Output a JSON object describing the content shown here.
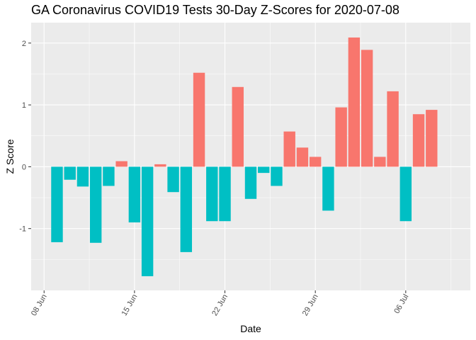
{
  "chart_data": {
    "type": "bar",
    "title": "GA Coronavirus COVID19 Tests 30-Day Z-Scores for 2020-07-08",
    "xlabel": "Date",
    "ylabel": "Z Score",
    "grid": true,
    "legend": "none",
    "x_tick_labels": [
      "08 Jun",
      "15 Jun",
      "22 Jun",
      "29 Jun",
      "06 Jul"
    ],
    "x_tick_dates": [
      "2020-06-08",
      "2020-06-15",
      "2020-06-22",
      "2020-06-29",
      "2020-07-06"
    ],
    "y_ticks": [
      -1,
      0,
      1,
      2
    ],
    "ylim": [
      -2.0,
      2.33
    ],
    "xlim": [
      "2020-06-07",
      "2020-07-11"
    ],
    "colors": {
      "positive": "#F8766D",
      "negative": "#00BFC4",
      "panel": "#EBEBEB",
      "grid": "#FFFFFF"
    },
    "dates": [
      "2020-06-09",
      "2020-06-10",
      "2020-06-11",
      "2020-06-12",
      "2020-06-13",
      "2020-06-14",
      "2020-06-15",
      "2020-06-16",
      "2020-06-17",
      "2020-06-18",
      "2020-06-19",
      "2020-06-20",
      "2020-06-21",
      "2020-06-22",
      "2020-06-23",
      "2020-06-24",
      "2020-06-25",
      "2020-06-26",
      "2020-06-27",
      "2020-06-28",
      "2020-06-29",
      "2020-06-30",
      "2020-07-01",
      "2020-07-02",
      "2020-07-03",
      "2020-07-04",
      "2020-07-05",
      "2020-07-06",
      "2020-07-07",
      "2020-07-08"
    ],
    "values": [
      -1.22,
      -0.21,
      -0.32,
      -1.23,
      -0.31,
      0.09,
      -0.9,
      -1.77,
      0.04,
      -0.41,
      -1.38,
      1.52,
      -0.88,
      -0.88,
      1.29,
      -0.52,
      -0.1,
      -0.31,
      0.57,
      0.31,
      0.16,
      -0.71,
      0.96,
      2.09,
      1.89,
      0.16,
      1.22,
      -0.88,
      0.85,
      0.92
    ]
  }
}
